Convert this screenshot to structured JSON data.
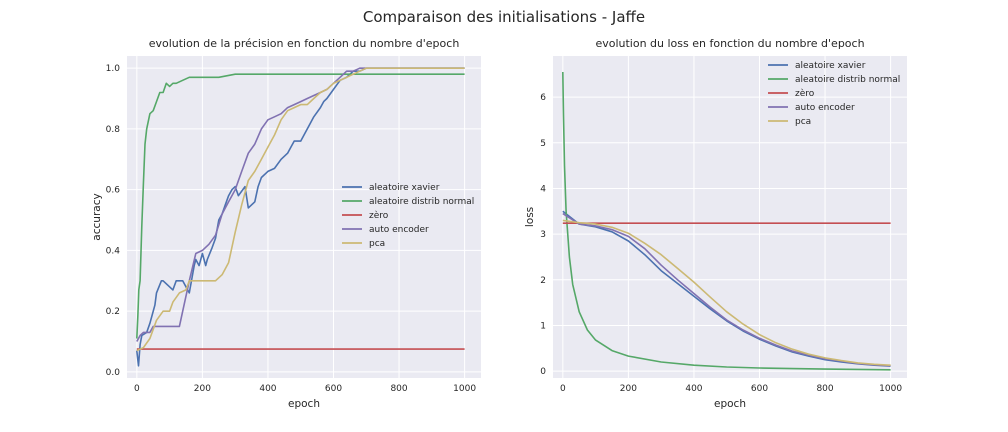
{
  "figure_title": "Comparaison des initialisations - Jaffe",
  "colors": {
    "xavier": "#4c72b0",
    "normal": "#55a868",
    "zero": "#c44e52",
    "autoencoder": "#8172b2",
    "pca": "#ccb974"
  },
  "chart_data": [
    {
      "type": "line",
      "title": "evolution de la précision en fonction du nombre d'epoch",
      "xlabel": "epoch",
      "ylabel": "accuracy",
      "xlim": [
        -30,
        1050
      ],
      "ylim": [
        -0.02,
        1.04
      ],
      "xticks": [
        0,
        200,
        400,
        600,
        800,
        1000
      ],
      "yticks": [
        0.0,
        0.2,
        0.4,
        0.6,
        0.8,
        1.0
      ],
      "grid": true,
      "legend_position": "center-right",
      "series": [
        {
          "name": "aleatoire xavier",
          "color_key": "xavier",
          "x": [
            0,
            5,
            10,
            15,
            30,
            40,
            55,
            60,
            75,
            80,
            110,
            120,
            140,
            155,
            160,
            175,
            180,
            190,
            200,
            210,
            215,
            230,
            240,
            250,
            260,
            270,
            280,
            290,
            300,
            310,
            330,
            340,
            360,
            370,
            380,
            400,
            420,
            440,
            460,
            470,
            480,
            500,
            520,
            540,
            560,
            570,
            580,
            600,
            620,
            640,
            660,
            680,
            700,
            720,
            1000
          ],
          "y": [
            0.07,
            0.02,
            0.09,
            0.12,
            0.13,
            0.16,
            0.22,
            0.26,
            0.3,
            0.3,
            0.27,
            0.3,
            0.3,
            0.27,
            0.26,
            0.35,
            0.37,
            0.35,
            0.39,
            0.35,
            0.37,
            0.41,
            0.44,
            0.5,
            0.52,
            0.55,
            0.58,
            0.6,
            0.61,
            0.58,
            0.61,
            0.54,
            0.56,
            0.61,
            0.64,
            0.66,
            0.67,
            0.7,
            0.72,
            0.74,
            0.76,
            0.76,
            0.8,
            0.84,
            0.87,
            0.89,
            0.9,
            0.93,
            0.96,
            0.97,
            0.99,
            0.99,
            1.0,
            1.0,
            1.0
          ]
        },
        {
          "name": "aleatoire distrib normal",
          "color_key": "normal",
          "x": [
            0,
            3,
            6,
            10,
            15,
            20,
            25,
            30,
            40,
            50,
            60,
            70,
            80,
            90,
            100,
            110,
            120,
            140,
            160,
            180,
            250,
            300,
            400,
            600,
            800,
            1000
          ],
          "y": [
            0.11,
            0.18,
            0.27,
            0.3,
            0.48,
            0.62,
            0.75,
            0.8,
            0.85,
            0.86,
            0.89,
            0.92,
            0.92,
            0.95,
            0.94,
            0.95,
            0.95,
            0.96,
            0.97,
            0.97,
            0.97,
            0.98,
            0.98,
            0.98,
            0.98,
            0.98
          ]
        },
        {
          "name": "zèro",
          "color_key": "zero",
          "x": [
            0,
            1000
          ],
          "y": [
            0.075,
            0.075
          ]
        },
        {
          "name": "auto encoder",
          "color_key": "autoencoder",
          "x": [
            0,
            10,
            20,
            40,
            50,
            60,
            130,
            140,
            160,
            180,
            200,
            220,
            240,
            260,
            280,
            300,
            320,
            340,
            360,
            380,
            400,
            420,
            440,
            460,
            480,
            500,
            520,
            540,
            560,
            580,
            600,
            620,
            640,
            660,
            680,
            700,
            1000
          ],
          "y": [
            0.1,
            0.12,
            0.13,
            0.13,
            0.15,
            0.15,
            0.15,
            0.2,
            0.3,
            0.39,
            0.4,
            0.42,
            0.45,
            0.52,
            0.56,
            0.6,
            0.66,
            0.72,
            0.75,
            0.8,
            0.83,
            0.84,
            0.85,
            0.87,
            0.88,
            0.89,
            0.9,
            0.91,
            0.92,
            0.93,
            0.95,
            0.97,
            0.99,
            0.99,
            1.0,
            1.0,
            1.0
          ]
        },
        {
          "name": "pca",
          "color_key": "pca",
          "x": [
            0,
            20,
            40,
            60,
            80,
            100,
            110,
            130,
            150,
            160,
            180,
            200,
            240,
            260,
            280,
            300,
            320,
            340,
            360,
            380,
            400,
            420,
            440,
            460,
            480,
            500,
            520,
            540,
            560,
            580,
            600,
            620,
            640,
            660,
            680,
            700,
            1000
          ],
          "y": [
            0.07,
            0.08,
            0.11,
            0.17,
            0.2,
            0.2,
            0.23,
            0.26,
            0.27,
            0.3,
            0.3,
            0.3,
            0.3,
            0.32,
            0.36,
            0.46,
            0.55,
            0.63,
            0.66,
            0.7,
            0.74,
            0.78,
            0.83,
            0.86,
            0.87,
            0.88,
            0.88,
            0.9,
            0.92,
            0.93,
            0.95,
            0.96,
            0.97,
            0.98,
            0.99,
            1.0,
            1.0
          ]
        }
      ]
    },
    {
      "type": "line",
      "title": "evolution du loss en fonction du nombre d'epoch",
      "xlabel": "epoch",
      "ylabel": "loss",
      "xlim": [
        -30,
        1050
      ],
      "ylim": [
        -0.15,
        6.9
      ],
      "xticks": [
        0,
        200,
        400,
        600,
        800,
        1000
      ],
      "yticks": [
        0,
        1,
        2,
        3,
        4,
        5,
        6
      ],
      "grid": true,
      "legend_position": "top-right",
      "series": [
        {
          "name": "aleatoire xavier",
          "color_key": "xavier",
          "x": [
            0,
            50,
            100,
            150,
            200,
            250,
            300,
            350,
            400,
            450,
            500,
            550,
            600,
            650,
            700,
            750,
            800,
            850,
            900,
            950,
            1000
          ],
          "y": [
            3.5,
            3.22,
            3.16,
            3.05,
            2.85,
            2.55,
            2.2,
            1.92,
            1.64,
            1.36,
            1.1,
            0.88,
            0.7,
            0.55,
            0.42,
            0.33,
            0.25,
            0.2,
            0.16,
            0.13,
            0.11
          ]
        },
        {
          "name": "aleatoire distrib normal",
          "color_key": "normal",
          "x": [
            0,
            2,
            5,
            10,
            20,
            30,
            50,
            75,
            100,
            150,
            200,
            300,
            400,
            500,
            600,
            700,
            800,
            900,
            1000
          ],
          "y": [
            6.55,
            5.6,
            4.5,
            3.5,
            2.5,
            1.9,
            1.3,
            0.9,
            0.68,
            0.45,
            0.33,
            0.2,
            0.13,
            0.09,
            0.07,
            0.055,
            0.045,
            0.038,
            0.03
          ]
        },
        {
          "name": "zèro",
          "color_key": "zero",
          "x": [
            0,
            1000
          ],
          "y": [
            3.24,
            3.24
          ]
        },
        {
          "name": "auto encoder",
          "color_key": "autoencoder",
          "x": [
            0,
            50,
            100,
            150,
            200,
            250,
            300,
            350,
            400,
            450,
            500,
            550,
            600,
            650,
            700,
            750,
            800,
            850,
            900,
            950,
            1000
          ],
          "y": [
            3.45,
            3.22,
            3.18,
            3.1,
            2.95,
            2.68,
            2.32,
            2.0,
            1.7,
            1.4,
            1.12,
            0.9,
            0.72,
            0.57,
            0.44,
            0.35,
            0.27,
            0.22,
            0.17,
            0.14,
            0.12
          ]
        },
        {
          "name": "pca",
          "color_key": "pca",
          "x": [
            0,
            50,
            100,
            150,
            200,
            250,
            300,
            350,
            400,
            450,
            500,
            550,
            600,
            650,
            700,
            750,
            800,
            850,
            900,
            950,
            1000
          ],
          "y": [
            3.3,
            3.25,
            3.22,
            3.15,
            3.02,
            2.8,
            2.55,
            2.25,
            1.95,
            1.62,
            1.3,
            1.03,
            0.8,
            0.62,
            0.48,
            0.37,
            0.29,
            0.23,
            0.18,
            0.15,
            0.13
          ]
        }
      ]
    }
  ]
}
